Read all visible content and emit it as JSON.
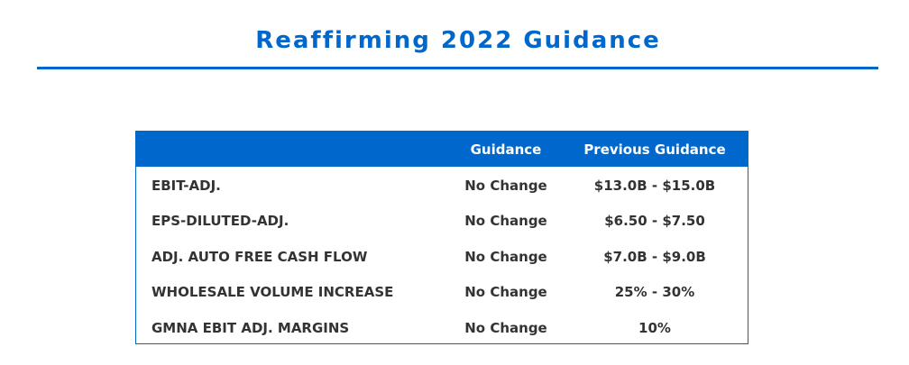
{
  "page": {
    "title": "Reaffirming 2022 Guidance"
  },
  "table": {
    "headers": {
      "label": "",
      "guidance": "Guidance",
      "previous": "Previous Guidance"
    },
    "rows": [
      {
        "label": "EBIT-ADJ.",
        "guidance": "No Change",
        "previous": "$13.0B - $15.0B"
      },
      {
        "label": "EPS-DILUTED-ADJ.",
        "guidance": "No Change",
        "previous": "$6.50 - $7.50"
      },
      {
        "label": "ADJ. AUTO FREE CASH FLOW",
        "guidance": "No Change",
        "previous": "$7.0B - $9.0B"
      },
      {
        "label": "WHOLESALE VOLUME INCREASE",
        "guidance": "No Change",
        "previous": "25% - 30%"
      },
      {
        "label": "GMNA EBIT ADJ. MARGINS",
        "guidance": "No Change",
        "previous": "10%"
      }
    ]
  },
  "colors": {
    "accent": "#0068cc",
    "text": "#333333"
  }
}
